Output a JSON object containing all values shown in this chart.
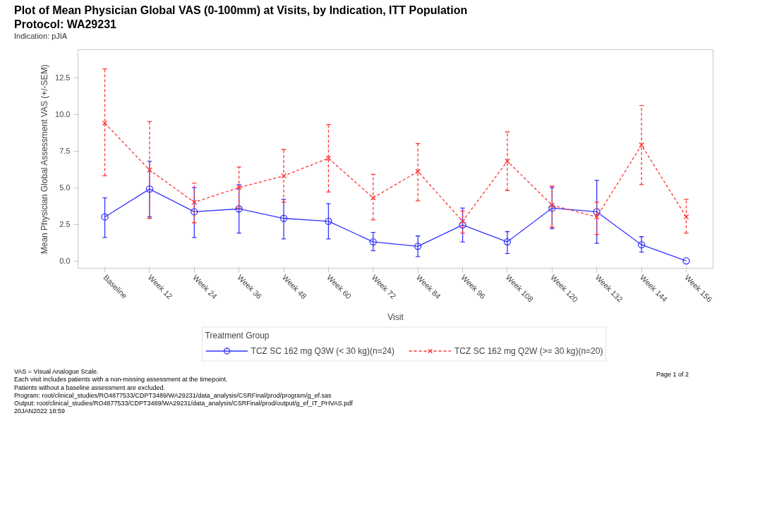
{
  "chart_data": {
    "type": "line",
    "title": "Plot of Mean Physician Global VAS (0-100mm) at Visits, by Indication, ITT Population",
    "subtitle": "Protocol: WA29231",
    "xlabel": "Visit",
    "ylabel": "Mean Physician Global Assessment VAS (+/-SEM)",
    "legend_title": "Treatment Group",
    "categories": [
      "Baseline",
      "Week 12",
      "Week 24",
      "Week 36",
      "Week 48",
      "Week 60",
      "Week 72",
      "Week 84",
      "Week 96",
      "Week 108",
      "Week 120",
      "Week 132",
      "Week 144",
      "Week 156"
    ],
    "series": [
      {
        "name": "TCZ SC 162 mg Q3W (< 30 kg)(n=24)",
        "color": "#3333ff",
        "marker": "circle",
        "line_style": "solid",
        "values": [
          3.0,
          4.9,
          3.35,
          3.55,
          2.9,
          2.7,
          1.3,
          1.0,
          2.45,
          1.3,
          3.6,
          3.35,
          1.1,
          0.0
        ],
        "errors": [
          [
            1.6,
            4.3
          ],
          [
            3.0,
            6.8
          ],
          [
            1.6,
            5.0
          ],
          [
            1.9,
            5.2
          ],
          [
            1.5,
            4.2
          ],
          [
            1.5,
            3.9
          ],
          [
            0.7,
            1.95
          ],
          [
            0.3,
            1.7
          ],
          [
            1.3,
            3.6
          ],
          [
            0.5,
            2.0
          ],
          [
            2.2,
            5.0
          ],
          [
            1.2,
            5.5
          ],
          [
            0.6,
            1.65
          ],
          null
        ]
      },
      {
        "name": "TCZ SC 162 mg Q2W (>= 30 kg)(n=20)",
        "color": "#ff3333",
        "marker": "cross",
        "line_style": "dashed",
        "values": [
          9.4,
          6.2,
          4.0,
          5.0,
          5.8,
          7.0,
          4.3,
          6.1,
          2.7,
          6.8,
          3.8,
          3.0,
          7.9,
          3.0
        ],
        "errors": [
          [
            5.8,
            13.1
          ],
          [
            2.9,
            9.5
          ],
          [
            2.6,
            5.3
          ],
          [
            3.6,
            6.4
          ],
          [
            4.0,
            7.6
          ],
          [
            4.7,
            9.3
          ],
          [
            2.8,
            5.9
          ],
          [
            4.1,
            8.0
          ],
          [
            1.9,
            3.4
          ],
          [
            4.8,
            8.8
          ],
          [
            2.3,
            5.1
          ],
          [
            1.8,
            4.0
          ],
          [
            5.2,
            10.6
          ],
          [
            1.9,
            4.2
          ]
        ]
      }
    ],
    "ylim": [
      -0.5,
      14.4
    ],
    "yticks": [
      {
        "value": 0,
        "label": "0.0"
      },
      2.5,
      {
        "value": 5,
        "label": "5.0"
      },
      7.5,
      {
        "value": 10,
        "label": "10.0"
      },
      12.5
    ],
    "grid": false,
    "legend": "bottom",
    "annotations": [
      "Indication: pJIA",
      "VAS = Visual Analogue Scale.",
      "Each visit includes patients with a non-missing assessment at the timepoint.",
      "Patients without a baseline assessment are excluded.",
      "Program: root/clinical_studies/RO4877533/CDPT3489/WA29231/data_analysis/CSRFinal/prod/program/g_ef.sas",
      "Output: root/clinical_studies/RO4877533/CDPT3489/WA29231/data_analysis/CSRFinal/prod/output/g_ef_IT_PHVAS.pdf",
      "20JAN2022 18:59",
      "Page 1 of 2"
    ]
  }
}
